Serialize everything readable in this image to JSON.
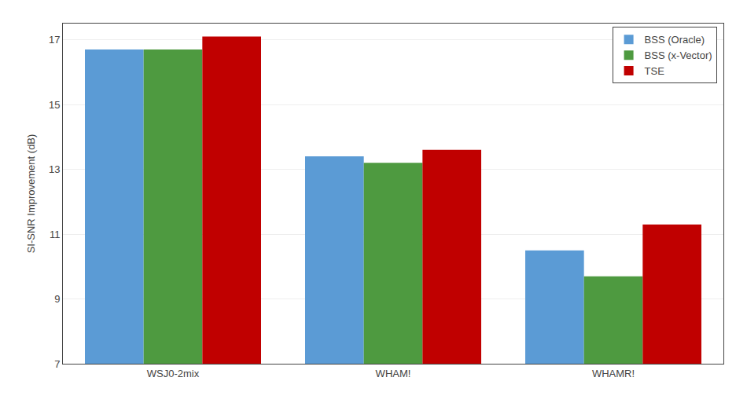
{
  "chart_data": {
    "type": "bar",
    "categories": [
      "WSJ0-2mix",
      "WHAM!",
      "WHAMR!"
    ],
    "series": [
      {
        "name": "BSS (Oracle)",
        "color": "#5B9BD5",
        "values": [
          16.7,
          13.4,
          10.5
        ]
      },
      {
        "name": "BSS (x-Vector)",
        "color": "#4E9A40",
        "values": [
          16.7,
          13.2,
          9.7
        ]
      },
      {
        "name": "TSE",
        "color": "#C00000",
        "values": [
          17.1,
          13.6,
          11.3
        ]
      }
    ],
    "ylabel": "SI-SNR Improvement (dB)",
    "ylim": [
      7,
      17.5
    ],
    "yticks": [
      7,
      9,
      11,
      13,
      15,
      17
    ],
    "grid": true,
    "legend": "upper right"
  }
}
